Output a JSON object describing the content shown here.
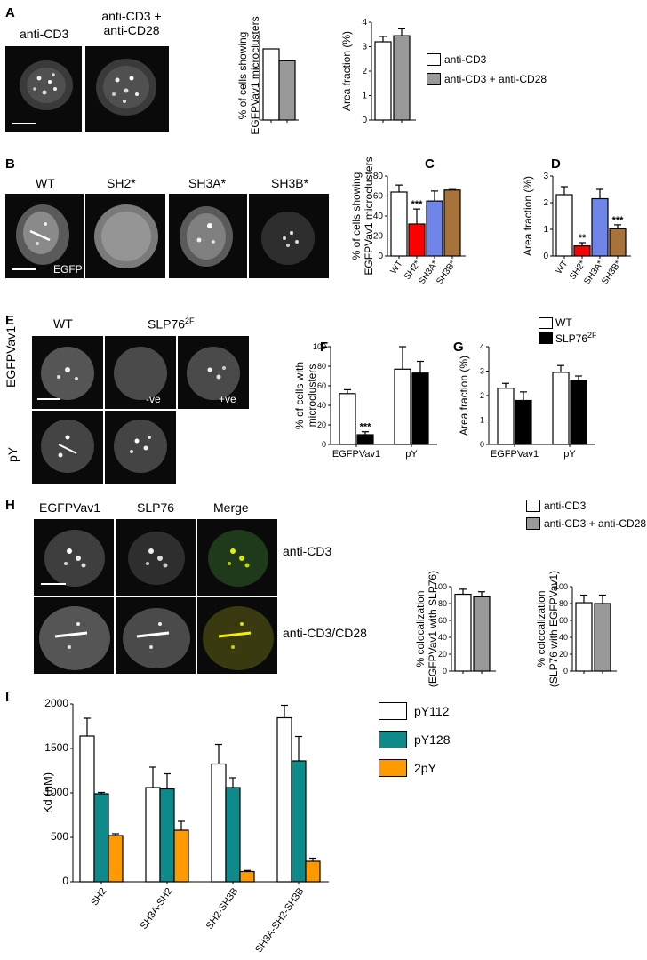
{
  "panels": {
    "A": {
      "label": "A",
      "image_labels": [
        "anti-CD3",
        "anti-CD3 +\nanti-CD28"
      ],
      "legend": [
        "anti-CD3",
        "anti-CD3 + anti-CD28"
      ]
    },
    "B": {
      "label": "B",
      "image_labels": [
        "WT",
        "SH2*",
        "SH3A*",
        "SH3B*"
      ],
      "overlay": "EGFP"
    },
    "C": {
      "label": "C"
    },
    "D": {
      "label": "D"
    },
    "E": {
      "label": "E",
      "column_labels": [
        "WT",
        "SLP76"
      ],
      "column_sup": "2F",
      "row_labels": [
        "EGFPVav1",
        "pY"
      ],
      "overlays": [
        "-ve",
        "+ve"
      ]
    },
    "F": {
      "label": "F"
    },
    "G": {
      "label": "G",
      "legend": [
        "WT",
        "SLP76"
      ],
      "legend_sup": "2F"
    },
    "H": {
      "label": "H",
      "column_labels": [
        "EGFPVav1",
        "SLP76",
        "Merge"
      ],
      "row_labels": [
        "anti-CD3",
        "anti-CD3/CD28"
      ],
      "legend": [
        "anti-CD3",
        "anti-CD3 + anti-CD28"
      ]
    },
    "I": {
      "label": "I",
      "legend": [
        "pY112",
        "pY128",
        "2pY"
      ]
    }
  },
  "chart_data": [
    {
      "id": "A1",
      "type": "bar",
      "categories": [
        "anti-CD3",
        "anti-CD3 + anti-CD28"
      ],
      "values": [
        48,
        40
      ],
      "ylabel": "% of cells showing\nEGFPVav1 microclusters",
      "ylim": [
        0,
        60
      ],
      "colors": [
        "#ffffff",
        "#999999"
      ]
    },
    {
      "id": "A2",
      "type": "bar",
      "categories": [
        "anti-CD3",
        "anti-CD3 + anti-CD28"
      ],
      "values": [
        3.2,
        3.45
      ],
      "errors": [
        0.22,
        0.28
      ],
      "ylabel": "Area fraction (%)",
      "ylim": [
        0,
        4
      ],
      "yticks": [
        "0",
        "1",
        "2",
        "3",
        "4"
      ],
      "colors": [
        "#ffffff",
        "#999999"
      ]
    },
    {
      "id": "C",
      "type": "bar",
      "categories": [
        "WT",
        "SH2*",
        "SH3A*",
        "SH3B*"
      ],
      "values": [
        64,
        32,
        55,
        66
      ],
      "errors": [
        7,
        15,
        10,
        0.5
      ],
      "annotations": [
        "",
        "***",
        "",
        ""
      ],
      "ylabel": "% of cells showing\nEGFPVav1 microclusters",
      "ylim": [
        0,
        80
      ],
      "yticks": [
        "0",
        "20",
        "40",
        "60",
        "80"
      ],
      "colors": [
        "#ffffff",
        "#ff0000",
        "#6f86e8",
        "#a8733b"
      ]
    },
    {
      "id": "D",
      "type": "bar",
      "categories": [
        "WT",
        "SH2*",
        "SH3A*",
        "SH3B*"
      ],
      "values": [
        2.3,
        0.38,
        2.15,
        1.02
      ],
      "errors": [
        0.3,
        0.12,
        0.35,
        0.15
      ],
      "annotations": [
        "",
        "**",
        "",
        "***"
      ],
      "ylabel": "Area fraction (%)",
      "ylim": [
        0,
        3
      ],
      "yticks": [
        "0",
        "1",
        "2",
        "3"
      ],
      "colors": [
        "#ffffff",
        "#ff0000",
        "#6f86e8",
        "#a8733b"
      ]
    },
    {
      "id": "F",
      "type": "bar",
      "categories": [
        "EGFPVav1",
        "pY"
      ],
      "series": [
        {
          "values": [
            52,
            77
          ],
          "errors": [
            4,
            23
          ],
          "annotations": [
            "",
            ""
          ],
          "color": "#ffffff"
        },
        {
          "values": [
            10,
            73
          ],
          "errors": [
            3,
            12
          ],
          "annotations": [
            "***",
            ""
          ],
          "color": "#000000"
        }
      ],
      "ylabel": "% of cells with\nmicroclusters",
      "ylim": [
        0,
        100
      ],
      "yticks": [
        "0",
        "20",
        "40",
        "60",
        "80",
        "100"
      ]
    },
    {
      "id": "G",
      "type": "bar",
      "categories": [
        "EGFPVav1",
        "pY"
      ],
      "series": [
        {
          "values": [
            2.3,
            2.95
          ],
          "errors": [
            0.2,
            0.28
          ],
          "color": "#ffffff"
        },
        {
          "values": [
            1.8,
            2.62
          ],
          "errors": [
            0.35,
            0.18
          ],
          "color": "#000000"
        }
      ],
      "ylabel": "Area fraction (%)",
      "ylim": [
        0,
        4
      ],
      "yticks": [
        "0",
        "1",
        "2",
        "3",
        "4"
      ]
    },
    {
      "id": "H1",
      "type": "bar",
      "categories": [
        "anti-CD3",
        "anti-CD3 + anti-CD28"
      ],
      "values": [
        91,
        88
      ],
      "errors": [
        6,
        6
      ],
      "ylabel": "% colocalization\n(EGFPVav1 with SLP76)",
      "ylim": [
        0,
        100
      ],
      "yticks": [
        "0",
        "20",
        "40",
        "60",
        "80",
        "100"
      ],
      "colors": [
        "#ffffff",
        "#999999"
      ]
    },
    {
      "id": "H2",
      "type": "bar",
      "categories": [
        "anti-CD3",
        "anti-CD3 + anti-CD28"
      ],
      "values": [
        81,
        80
      ],
      "errors": [
        9,
        10
      ],
      "ylabel": "% colocalization\n(SLP76 with EGFPVav1)",
      "ylim": [
        0,
        100
      ],
      "yticks": [
        "0",
        "20",
        "40",
        "60",
        "80",
        "100"
      ],
      "colors": [
        "#ffffff",
        "#999999"
      ]
    },
    {
      "id": "I",
      "type": "bar",
      "categories": [
        "SH2",
        "SH3A-SH2",
        "SH2-SH3B",
        "SH3A-SH2-SH3B"
      ],
      "series": [
        {
          "name": "pY112",
          "values": [
            1640,
            1060,
            1325,
            1845
          ],
          "errors": [
            200,
            230,
            220,
            140
          ],
          "color": "#ffffff"
        },
        {
          "name": "pY128",
          "values": [
            990,
            1045,
            1060,
            1360
          ],
          "errors": [
            15,
            170,
            110,
            275
          ],
          "color": "#0f8a8a"
        },
        {
          "name": "2pY",
          "values": [
            520,
            580,
            115,
            230
          ],
          "errors": [
            20,
            100,
            12,
            35
          ],
          "color": "#ff9900"
        }
      ],
      "ylabel": "Kd (nM)",
      "ylim": [
        0,
        2000
      ],
      "yticks": [
        "0",
        "500",
        "1000",
        "1500",
        "2000"
      ]
    }
  ]
}
